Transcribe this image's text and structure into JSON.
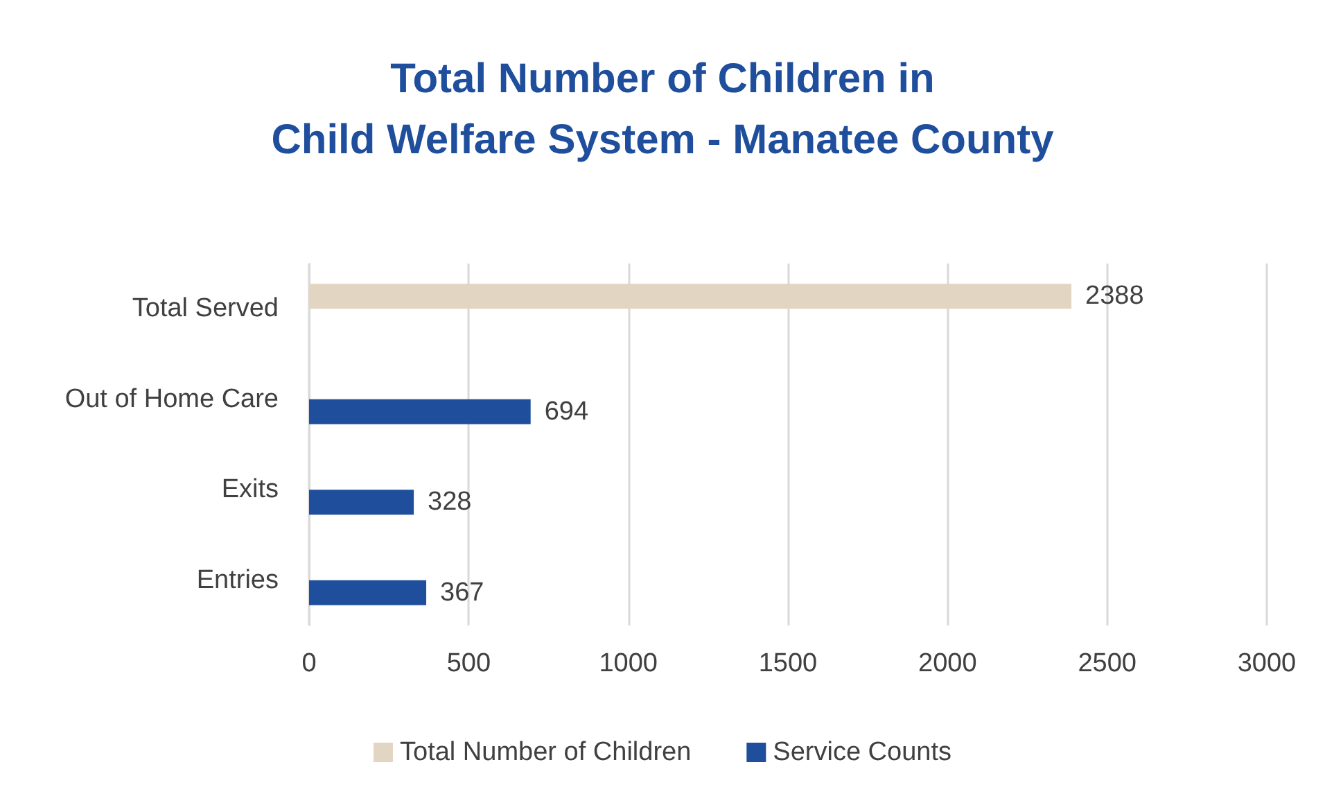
{
  "chart_data": {
    "type": "bar",
    "orientation": "horizontal",
    "title": "Total Number of Children in\nChild Welfare System - Manatee County",
    "categories": [
      "Total Served",
      "Out of Home Care",
      "Exits",
      "Entries"
    ],
    "series": [
      {
        "name": "Total Number of Children",
        "color": "#e2d5c1",
        "values": [
          2388,
          null,
          null,
          null
        ]
      },
      {
        "name": "Service Counts",
        "color": "#1f4e9c",
        "values": [
          null,
          694,
          328,
          367
        ]
      }
    ],
    "xlim": [
      0,
      3000
    ],
    "xticks": [
      0,
      500,
      1000,
      1500,
      2000,
      2500,
      3000
    ],
    "grid": "x",
    "legend": "bottom",
    "data_labels": true
  }
}
